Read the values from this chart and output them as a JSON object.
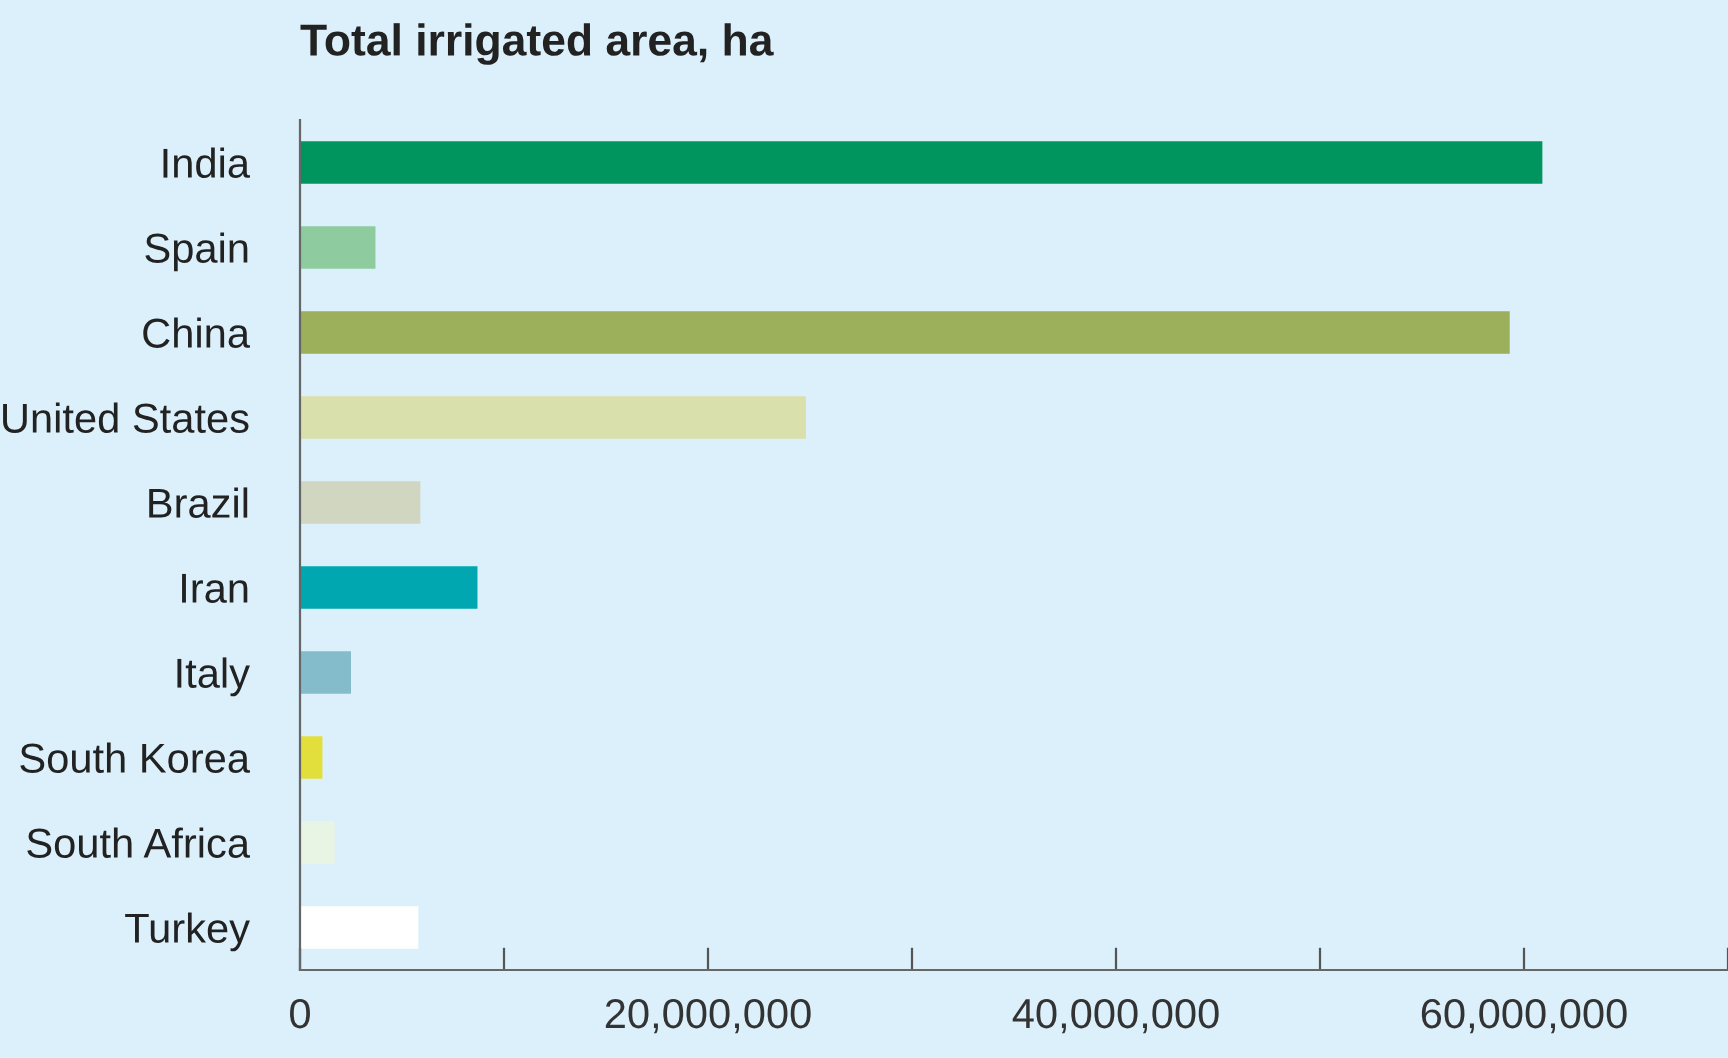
{
  "chart_data": {
    "type": "bar",
    "orientation": "horizontal",
    "title": "Total irrigated area, ha",
    "categories": [
      "India",
      "Spain",
      "China",
      "United States",
      "Brazil",
      "Iran",
      "Italy",
      "South Korea",
      "South Africa",
      "Turkey"
    ],
    "values": [
      60900000,
      3700000,
      59300000,
      24800000,
      5900000,
      8700000,
      2500000,
      1100000,
      1700000,
      5800000
    ],
    "colors": [
      "#00945e",
      "#8ecca0",
      "#9caf5a",
      "#d9e0ab",
      "#d0d6c0",
      "#00a7b0",
      "#84bccc",
      "#e2df3c",
      "#e8f4e4",
      "#ffffff"
    ],
    "xlim": [
      0,
      70000000
    ],
    "xticks": [
      0,
      {
        "value": 10000000,
        "label": null
      },
      {
        "value": 20000000,
        "label": "20,000,000"
      },
      {
        "value": 30000000,
        "label": null
      },
      {
        "value": 40000000,
        "label": "40,000,000"
      },
      {
        "value": 50000000,
        "label": null
      },
      {
        "value": 60000000,
        "label": "60,000,000"
      },
      {
        "value": 70000000,
        "label": null
      }
    ],
    "grid": false,
    "legend": false
  }
}
